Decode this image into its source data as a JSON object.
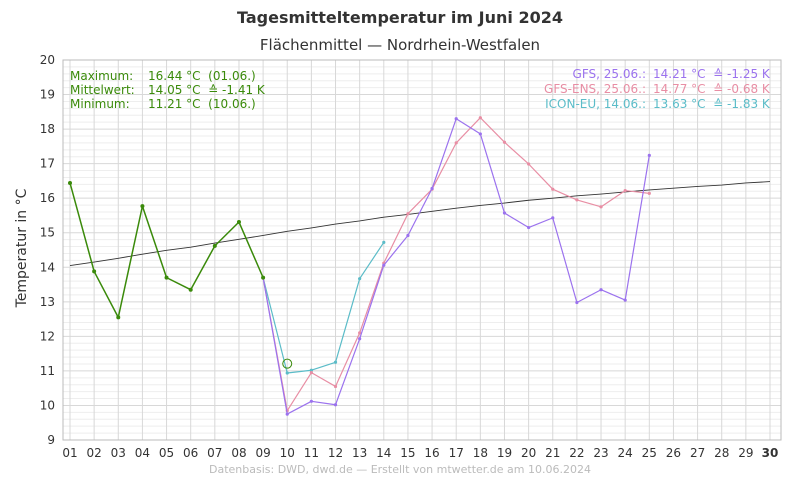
{
  "colors": {
    "observed": "#3a8a0a",
    "gfs": "#9b72ee",
    "gfs_ens": "#e88ea4",
    "icon_eu": "#5bbcc8",
    "climate": "#333333",
    "grid_major": "#d8d8d8",
    "grid_minor": "#eeeeee"
  },
  "stats": {
    "max_label": "Maximum:",
    "max_value": "16.44 °C  (01.06.)",
    "mean_label": "Mittelwert:",
    "mean_value": "14.05 °C  ≙ -1.41 K",
    "min_label": "Minimum:",
    "min_value": "11.21 °C  (10.06.)"
  },
  "legend": {
    "gfs_label": "GFS, 25.06.:",
    "gfs_value": "14.21 °C  ≙ -1.25 K",
    "gfs_ens_label": "GFS-ENS, 25.06.:",
    "gfs_ens_value": "14.77 °C  ≙ -0.68 K",
    "icon_eu_label": "ICON-EU, 14.06.:",
    "icon_eu_value": "13.63 °C  ≙ -1.83 K"
  },
  "footer": "Datenbasis: DWD, dwd.de — Erstellt von mtwetter.de am 10.06.2024",
  "chart_data": {
    "type": "line",
    "title": "Tagesmitteltemperatur im Juni 2024",
    "subtitle": "Flächenmittel — Nordrhein-Westfalen",
    "ylabel": "Temperatur in °C",
    "xlabel": "",
    "categories": [
      "01",
      "02",
      "03",
      "04",
      "05",
      "06",
      "07",
      "08",
      "09",
      "10",
      "11",
      "12",
      "13",
      "14",
      "15",
      "16",
      "17",
      "18",
      "19",
      "20",
      "21",
      "22",
      "23",
      "24",
      "25",
      "26",
      "27",
      "28",
      "29",
      "30"
    ],
    "xlim": [
      1,
      30
    ],
    "ylim": [
      9,
      20
    ],
    "yticks": [
      9,
      10,
      11,
      12,
      13,
      14,
      15,
      16,
      17,
      18,
      19,
      20
    ],
    "grid": true,
    "series": [
      {
        "key": "observed",
        "x": [
          1,
          2,
          3,
          4,
          5,
          6,
          7,
          8,
          9
        ],
        "y": [
          16.44,
          13.88,
          12.55,
          15.77,
          13.7,
          13.35,
          14.62,
          15.31,
          13.7
        ]
      },
      {
        "key": "gfs",
        "x": [
          9,
          10,
          11,
          12,
          13,
          14,
          15,
          16,
          17,
          18,
          19,
          20,
          21,
          22,
          23,
          24,
          25
        ],
        "y": [
          13.7,
          9.75,
          10.12,
          10.02,
          11.93,
          14.06,
          14.92,
          16.28,
          18.3,
          17.86,
          15.57,
          15.15,
          15.43,
          12.98,
          13.35,
          13.05,
          17.24
        ]
      },
      {
        "key": "gfs_ens",
        "x": [
          9,
          10,
          11,
          12,
          13,
          14,
          15,
          16,
          17,
          18,
          19,
          20,
          21,
          22,
          23,
          24,
          25
        ],
        "y": [
          13.7,
          9.85,
          10.95,
          10.55,
          12.1,
          14.12,
          15.55,
          16.26,
          17.6,
          18.33,
          17.62,
          16.99,
          16.26,
          15.95,
          15.75,
          16.22,
          16.14
        ]
      },
      {
        "key": "icon_eu",
        "x": [
          9,
          10,
          11,
          12,
          13,
          14
        ],
        "y": [
          13.7,
          10.94,
          11.02,
          11.25,
          13.67,
          14.72
        ]
      },
      {
        "key": "climate",
        "x": [
          1,
          2,
          3,
          4,
          5,
          6,
          7,
          8,
          9,
          10,
          11,
          12,
          13,
          14,
          15,
          16,
          17,
          18,
          19,
          20,
          21,
          22,
          23,
          24,
          25,
          26,
          27,
          28,
          29,
          30
        ],
        "y": [
          14.05,
          14.15,
          14.26,
          14.38,
          14.49,
          14.58,
          14.7,
          14.81,
          14.92,
          15.04,
          15.14,
          15.25,
          15.34,
          15.45,
          15.53,
          15.62,
          15.71,
          15.79,
          15.86,
          15.94,
          16.0,
          16.07,
          16.12,
          16.18,
          16.24,
          16.29,
          16.34,
          16.38,
          16.44,
          16.48
        ]
      }
    ],
    "markers": [
      {
        "label": "Minimum",
        "x": 10,
        "y": 11.21
      }
    ]
  }
}
